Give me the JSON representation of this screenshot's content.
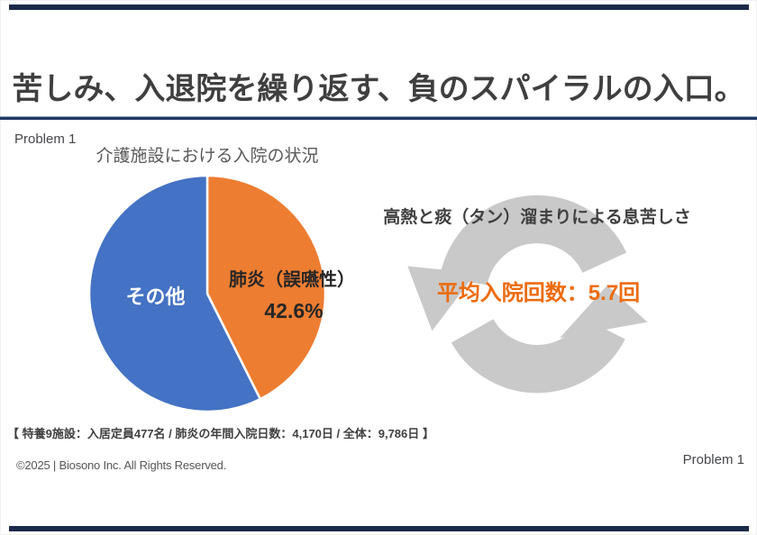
{
  "slide": {
    "title": "苦しみ、入退院を繰り返す、負のスパイラルの入口。",
    "problem_label_top": "Problem 1",
    "problem_label_bottom": "Problem 1",
    "footnote": "【 特養9施設：入居定員477名 / 肺炎の年間入院日数：4,170日 / 全体：9,786日 】",
    "copyright": "©2025 | Biosono Inc. All Rights Reserved."
  },
  "pie_section": {
    "chart_title": "介護施設における入院の状況",
    "other_label": "その他",
    "pneumonia_label": "肺炎（誤嚥性）",
    "pneumonia_pct_label": "42.6%"
  },
  "cycle_section": {
    "symptom_text": "高熱と痰（タン）溜まりによる息苦しさ",
    "stat_text": "平均入院回数：5.7回"
  },
  "colors": {
    "accent_navy": "#1F3864",
    "edge_bar_navy": "#1B2A4A",
    "pie_blue": "#4472C4",
    "pie_orange": "#ED7D31",
    "stat_orange": "#ED6B0D",
    "cycle_gray": "#C9C9C9",
    "text_dark": "#3F3F3F"
  },
  "chart_data": {
    "type": "pie",
    "title": "介護施設における入院の状況",
    "unit": "%",
    "start_angle_deg": 0,
    "direction": "clockwise",
    "slices": [
      {
        "label": "肺炎（誤嚥性）",
        "value": 42.6,
        "color": "#ED7D31"
      },
      {
        "label": "その他",
        "value": 57.4,
        "color": "#4472C4"
      }
    ],
    "legend": "none",
    "labels_on_slices": true
  }
}
